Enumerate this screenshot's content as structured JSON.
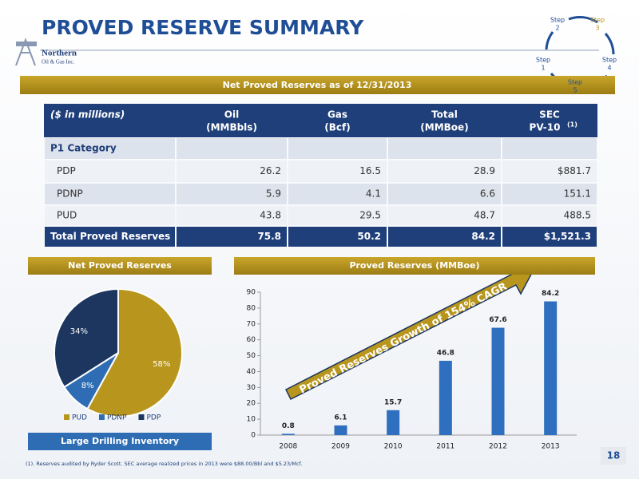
{
  "header": {
    "title": "PROVED RESERVE SUMMARY",
    "logo": [
      "Northern",
      "Oil & Gas Inc."
    ]
  },
  "steps": [
    {
      "word": "Step",
      "n": "2"
    },
    {
      "word": "Step",
      "n": "3"
    },
    {
      "word": "Step",
      "n": "4"
    },
    {
      "word": "Step",
      "n": "5"
    },
    {
      "word": "Step",
      "n": "1"
    }
  ],
  "banner": "Net Proved Reserves as of 12/31/2013",
  "table": {
    "columns": [
      {
        "name": "($ in millions)"
      },
      {
        "name": "Oil",
        "unit": "(MMBbls)"
      },
      {
        "name": "Gas",
        "unit": "(Bcf)"
      },
      {
        "name": "Total",
        "unit": "(MMBoe)"
      },
      {
        "name": "SEC",
        "unit": "PV-10",
        "note": "(1)"
      }
    ],
    "rows": [
      [
        "P1 Category"
      ],
      [
        "PDP",
        "26.2",
        "16.5",
        "28.9",
        "$881.7"
      ],
      [
        "PDNP",
        "5.9",
        "4.1",
        "6.6",
        "151.1"
      ],
      [
        "PUD",
        "43.8",
        "29.5",
        "48.7",
        "488.5"
      ],
      [
        "Total Proved Reserves",
        "75.8",
        "50.2",
        "84.2",
        "$1,521.3"
      ]
    ]
  },
  "chart_data": [
    {
      "type": "pie",
      "title": "Net Proved Reserves",
      "caption": "Large Drilling Inventory",
      "categories": [
        "PUD",
        "PDNP",
        "PDP"
      ],
      "values": [
        58,
        8,
        34
      ],
      "value_labels": [
        "58%",
        "8%",
        "34%"
      ],
      "colors": [
        "#b8961e",
        "#2e6db4",
        "#1c3660"
      ],
      "legend": "bottom"
    },
    {
      "type": "bar",
      "title": "Proved Reserves (MMBoe)",
      "annotation": "Proved Reserves Growth of 154% CAGR",
      "categories": [
        "2008",
        "2009",
        "2010",
        "2011",
        "2012",
        "2013"
      ],
      "values": [
        0.8,
        6.1,
        15.7,
        46.8,
        67.6,
        84.2
      ],
      "color": "#2f6fbf",
      "ylim": [
        0,
        90
      ],
      "yticks": [
        0,
        10,
        20,
        30,
        40,
        50,
        60,
        70,
        80,
        90
      ]
    }
  ],
  "footnote": "(1). Reserves audited by Ryder Scott. SEC average realized prices in 2013 were $88.00/Bbl and $5.23/Mcf.",
  "page_number": "18"
}
